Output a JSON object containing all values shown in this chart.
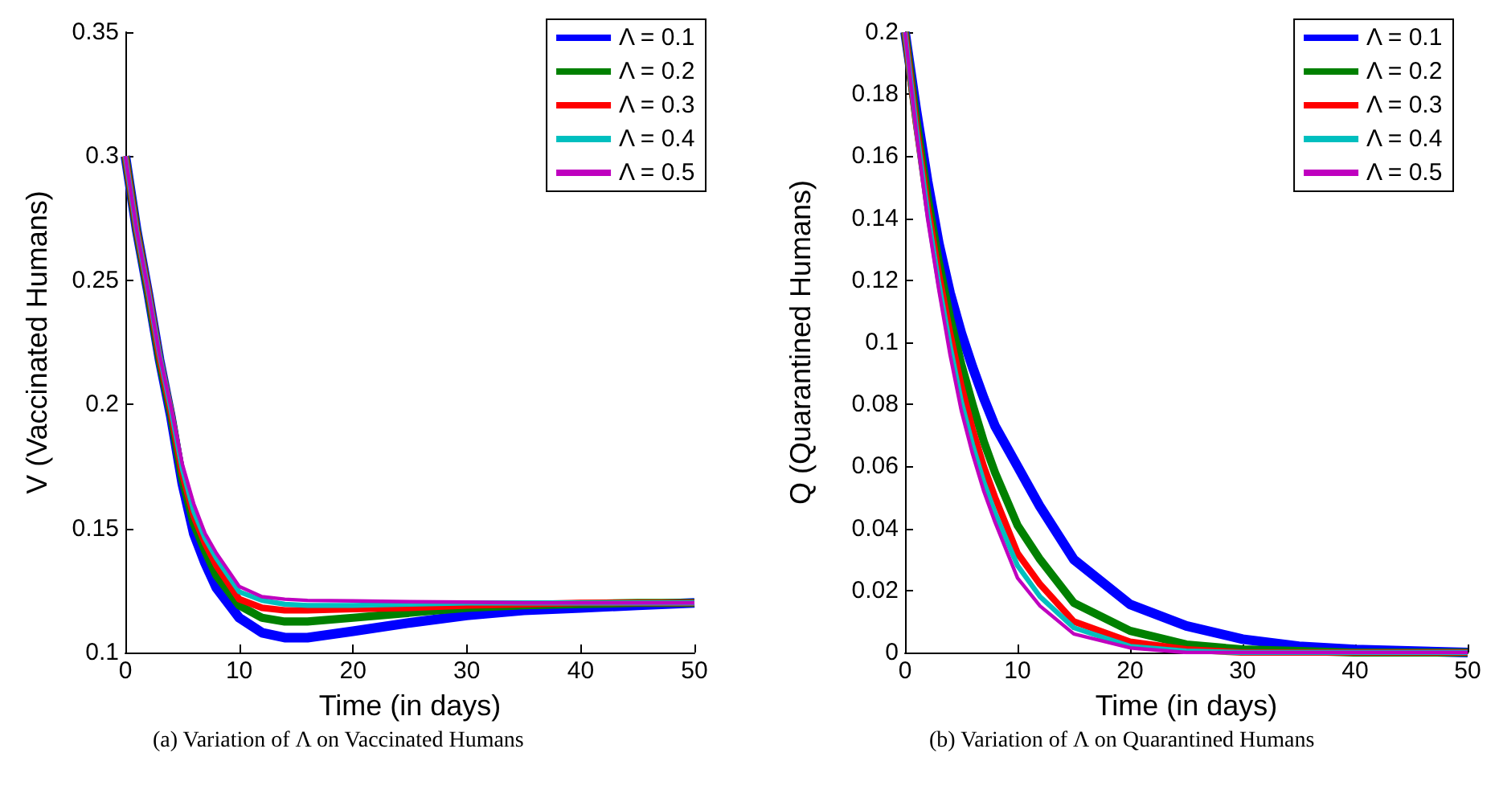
{
  "chart_data": [
    {
      "type": "line",
      "xlabel": "Time (in days)",
      "ylabel": "V (Vaccinated Humans)",
      "annotations": [
        "(a) Variation of Λ on Vaccinated Humans"
      ],
      "x": [
        0,
        1,
        2,
        3,
        4,
        5,
        6,
        7,
        8,
        10,
        12,
        14,
        16,
        20,
        25,
        30,
        35,
        40,
        45,
        50
      ],
      "series": [
        {
          "name": "Λ = 0.1",
          "color": "#0000ff",
          "values": [
            0.3,
            0.27,
            0.245,
            0.218,
            0.195,
            0.168,
            0.148,
            0.136,
            0.126,
            0.114,
            0.108,
            0.106,
            0.106,
            0.1086,
            0.112,
            0.115,
            0.117,
            0.118,
            0.119,
            0.12
          ]
        },
        {
          "name": "Λ = 0.2",
          "color": "#008000",
          "values": [
            0.3,
            0.27,
            0.245,
            0.218,
            0.196,
            0.17,
            0.152,
            0.141,
            0.131,
            0.119,
            0.114,
            0.1125,
            0.1125,
            0.114,
            0.116,
            0.118,
            0.119,
            0.1195,
            0.12,
            0.12
          ]
        },
        {
          "name": "Λ = 0.3",
          "color": "#ff0000",
          "values": [
            0.3,
            0.27,
            0.246,
            0.219,
            0.197,
            0.172,
            0.155,
            0.144,
            0.135,
            0.1215,
            0.118,
            0.117,
            0.117,
            0.1175,
            0.118,
            0.119,
            0.1195,
            0.12,
            0.12,
            0.12
          ]
        },
        {
          "name": "Λ = 0.4",
          "color": "#00bfbf",
          "values": [
            0.3,
            0.27,
            0.246,
            0.22,
            0.198,
            0.174,
            0.157,
            0.146,
            0.138,
            0.1245,
            0.121,
            0.1195,
            0.119,
            0.119,
            0.1195,
            0.12,
            0.12,
            0.12,
            0.12,
            0.12
          ]
        },
        {
          "name": "Λ = 0.5",
          "color": "#bf00bf",
          "values": [
            0.3,
            0.27,
            0.246,
            0.22,
            0.199,
            0.176,
            0.16,
            0.148,
            0.14,
            0.1266,
            0.1225,
            0.1215,
            0.121,
            0.1208,
            0.1205,
            0.1203,
            0.12,
            0.12,
            0.12,
            0.12
          ]
        }
      ],
      "xlim": [
        0,
        50
      ],
      "xticks": [
        0,
        10,
        20,
        30,
        40,
        50
      ],
      "ylim": [
        0.1,
        0.35
      ],
      "yticks": [
        0.1,
        0.15,
        0.2,
        0.25,
        0.3,
        0.35
      ],
      "grid": false,
      "legend": "top right",
      "line_style": "solid"
    },
    {
      "type": "line",
      "xlabel": "Time (in days)",
      "ylabel": "Q (Quarantined Humans)",
      "annotations": [
        "(b) Variation of Λ on Quarantined Humans"
      ],
      "x": [
        0,
        1,
        2,
        3,
        4,
        5,
        6,
        7,
        8,
        10,
        12,
        15,
        20,
        25,
        30,
        35,
        40,
        50
      ],
      "series": [
        {
          "name": "Λ = 0.1",
          "color": "#0000ff",
          "values": [
            0.2,
            0.175,
            0.152,
            0.132,
            0.116,
            0.103,
            0.092,
            0.082,
            0.073,
            0.06,
            0.047,
            0.03,
            0.0155,
            0.0086,
            0.0043,
            0.002,
            0.001,
            0
          ]
        },
        {
          "name": "Λ = 0.2",
          "color": "#008000",
          "values": [
            0.2,
            0.172,
            0.147,
            0.126,
            0.108,
            0.093,
            0.08,
            0.068,
            0.058,
            0.041,
            0.03,
            0.016,
            0.007,
            0.0026,
            0.001,
            0.0005,
            0,
            0
          ]
        },
        {
          "name": "Λ = 0.3",
          "color": "#ff0000",
          "values": [
            0.2,
            0.17,
            0.144,
            0.122,
            0.103,
            0.086,
            0.072,
            0.06,
            0.05,
            0.032,
            0.022,
            0.01,
            0.0035,
            0.001,
            0,
            0,
            0,
            0
          ]
        },
        {
          "name": "Λ = 0.4",
          "color": "#00bfbf",
          "values": [
            0.2,
            0.169,
            0.142,
            0.119,
            0.099,
            0.081,
            0.067,
            0.055,
            0.045,
            0.028,
            0.018,
            0.008,
            0.002,
            0.0005,
            0,
            0,
            0,
            0
          ]
        },
        {
          "name": "Λ = 0.5",
          "color": "#bf00bf",
          "values": [
            0.2,
            0.168,
            0.14,
            0.117,
            0.096,
            0.078,
            0.064,
            0.052,
            0.042,
            0.024,
            0.015,
            0.006,
            0.0015,
            0,
            0,
            0,
            0,
            0
          ]
        }
      ],
      "xlim": [
        0,
        50
      ],
      "xticks": [
        0,
        10,
        20,
        30,
        40,
        50
      ],
      "ylim": [
        0,
        0.2
      ],
      "yticks": [
        0,
        0.02,
        0.04,
        0.06,
        0.08,
        0.1,
        0.12,
        0.14,
        0.16,
        0.18,
        0.2
      ],
      "grid": false,
      "legend": "top right",
      "line_style": "solid"
    }
  ]
}
